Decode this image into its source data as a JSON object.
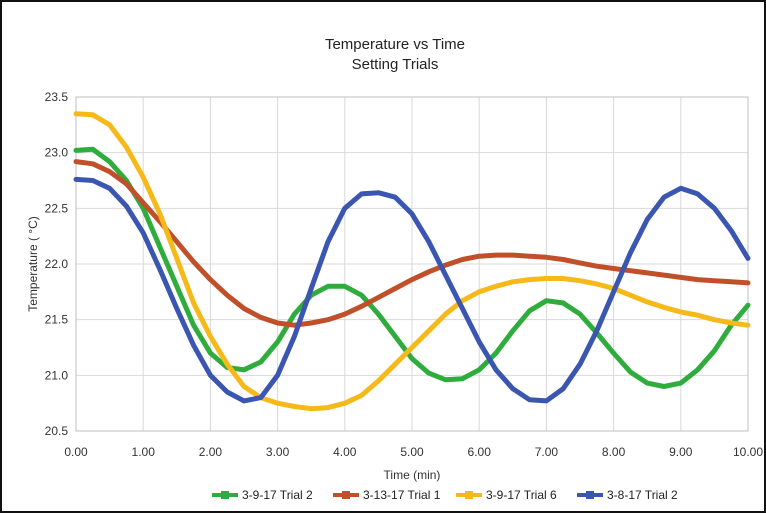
{
  "chart_data": {
    "type": "line",
    "title": "Temperature vs Time",
    "subtitle": "Setting Trials",
    "xlabel": "Time (min)",
    "ylabel": "Temperature (    °C)",
    "xlim": [
      0,
      10
    ],
    "ylim": [
      20.5,
      23.5
    ],
    "x_ticks": [
      "0.00",
      "1.00",
      "2.00",
      "3.00",
      "4.00",
      "5.00",
      "6.00",
      "7.00",
      "8.00",
      "9.00",
      "10.00"
    ],
    "y_ticks": [
      "20.5",
      "21.0",
      "21.5",
      "22.0",
      "22.5",
      "23.0",
      "23.5"
    ],
    "grid": true,
    "legend_position": "bottom",
    "series": [
      {
        "name": "3-9-17 Trial 2",
        "color": "#2eac3c",
        "x": [
          0,
          0.25,
          0.5,
          0.75,
          1.0,
          1.25,
          1.5,
          1.75,
          2.0,
          2.25,
          2.5,
          2.75,
          3.0,
          3.25,
          3.5,
          3.75,
          4.0,
          4.25,
          4.5,
          4.75,
          5.0,
          5.25,
          5.5,
          5.75,
          6.0,
          6.25,
          6.5,
          6.75,
          7.0,
          7.25,
          7.5,
          7.75,
          8.0,
          8.25,
          8.5,
          8.75,
          9.0,
          9.25,
          9.5,
          9.75,
          10.0
        ],
        "y": [
          23.02,
          23.03,
          22.92,
          22.75,
          22.5,
          22.15,
          21.8,
          21.45,
          21.2,
          21.07,
          21.05,
          21.12,
          21.3,
          21.55,
          21.72,
          21.8,
          21.8,
          21.72,
          21.55,
          21.35,
          21.15,
          21.02,
          20.96,
          20.97,
          21.05,
          21.2,
          21.4,
          21.58,
          21.67,
          21.65,
          21.55,
          21.38,
          21.2,
          21.03,
          20.93,
          20.9,
          20.93,
          21.05,
          21.22,
          21.45,
          21.63
        ]
      },
      {
        "name": "3-13-17 Trial 1",
        "color": "#c0502a",
        "x": [
          0,
          0.25,
          0.5,
          0.75,
          1.0,
          1.25,
          1.5,
          1.75,
          2.0,
          2.25,
          2.5,
          2.75,
          3.0,
          3.25,
          3.5,
          3.75,
          4.0,
          4.25,
          4.5,
          4.75,
          5.0,
          5.25,
          5.5,
          5.75,
          6.0,
          6.25,
          6.5,
          6.75,
          7.0,
          7.25,
          7.5,
          7.75,
          8.0,
          8.25,
          8.5,
          8.75,
          9.0,
          9.25,
          9.5,
          9.75,
          10.0
        ],
        "y": [
          22.92,
          22.9,
          22.83,
          22.72,
          22.55,
          22.38,
          22.2,
          22.02,
          21.86,
          21.72,
          21.6,
          21.52,
          21.47,
          21.45,
          21.47,
          21.5,
          21.55,
          21.62,
          21.7,
          21.78,
          21.86,
          21.93,
          21.99,
          22.04,
          22.07,
          22.08,
          22.08,
          22.07,
          22.06,
          22.04,
          22.01,
          21.98,
          21.96,
          21.94,
          21.92,
          21.9,
          21.88,
          21.86,
          21.85,
          21.84,
          21.83
        ]
      },
      {
        "name": "3-9-17 Trial 6",
        "color": "#f6b91a",
        "x": [
          0,
          0.25,
          0.5,
          0.75,
          1.0,
          1.25,
          1.5,
          1.75,
          2.0,
          2.25,
          2.5,
          2.75,
          3.0,
          3.25,
          3.5,
          3.75,
          4.0,
          4.25,
          4.5,
          4.75,
          5.0,
          5.25,
          5.5,
          5.75,
          6.0,
          6.25,
          6.5,
          6.75,
          7.0,
          7.25,
          7.5,
          7.75,
          8.0,
          8.25,
          8.5,
          8.75,
          9.0,
          9.25,
          9.5,
          9.75,
          10.0
        ],
        "y": [
          23.35,
          23.34,
          23.25,
          23.05,
          22.78,
          22.45,
          22.05,
          21.65,
          21.35,
          21.1,
          20.9,
          20.8,
          20.75,
          20.72,
          20.7,
          20.71,
          20.75,
          20.82,
          20.95,
          21.1,
          21.25,
          21.4,
          21.55,
          21.67,
          21.75,
          21.8,
          21.84,
          21.86,
          21.87,
          21.87,
          21.85,
          21.82,
          21.78,
          21.72,
          21.66,
          21.61,
          21.57,
          21.54,
          21.5,
          21.47,
          21.45
        ]
      },
      {
        "name": "3-8-17 Trial 2",
        "color": "#3a56b0",
        "x": [
          0,
          0.25,
          0.5,
          0.75,
          1.0,
          1.25,
          1.5,
          1.75,
          2.0,
          2.25,
          2.5,
          2.75,
          3.0,
          3.25,
          3.5,
          3.75,
          4.0,
          4.25,
          4.5,
          4.75,
          5.0,
          5.25,
          5.5,
          5.75,
          6.0,
          6.25,
          6.5,
          6.75,
          7.0,
          7.25,
          7.5,
          7.75,
          8.0,
          8.25,
          8.5,
          8.75,
          9.0,
          9.25,
          9.5,
          9.75,
          10.0
        ],
        "y": [
          22.76,
          22.75,
          22.68,
          22.52,
          22.28,
          21.95,
          21.6,
          21.27,
          21.0,
          20.85,
          20.77,
          20.8,
          21.0,
          21.35,
          21.78,
          22.2,
          22.5,
          22.63,
          22.64,
          22.6,
          22.45,
          22.2,
          21.9,
          21.6,
          21.3,
          21.05,
          20.88,
          20.78,
          20.77,
          20.88,
          21.1,
          21.4,
          21.75,
          22.1,
          22.4,
          22.6,
          22.68,
          22.63,
          22.5,
          22.3,
          22.05
        ]
      }
    ]
  }
}
